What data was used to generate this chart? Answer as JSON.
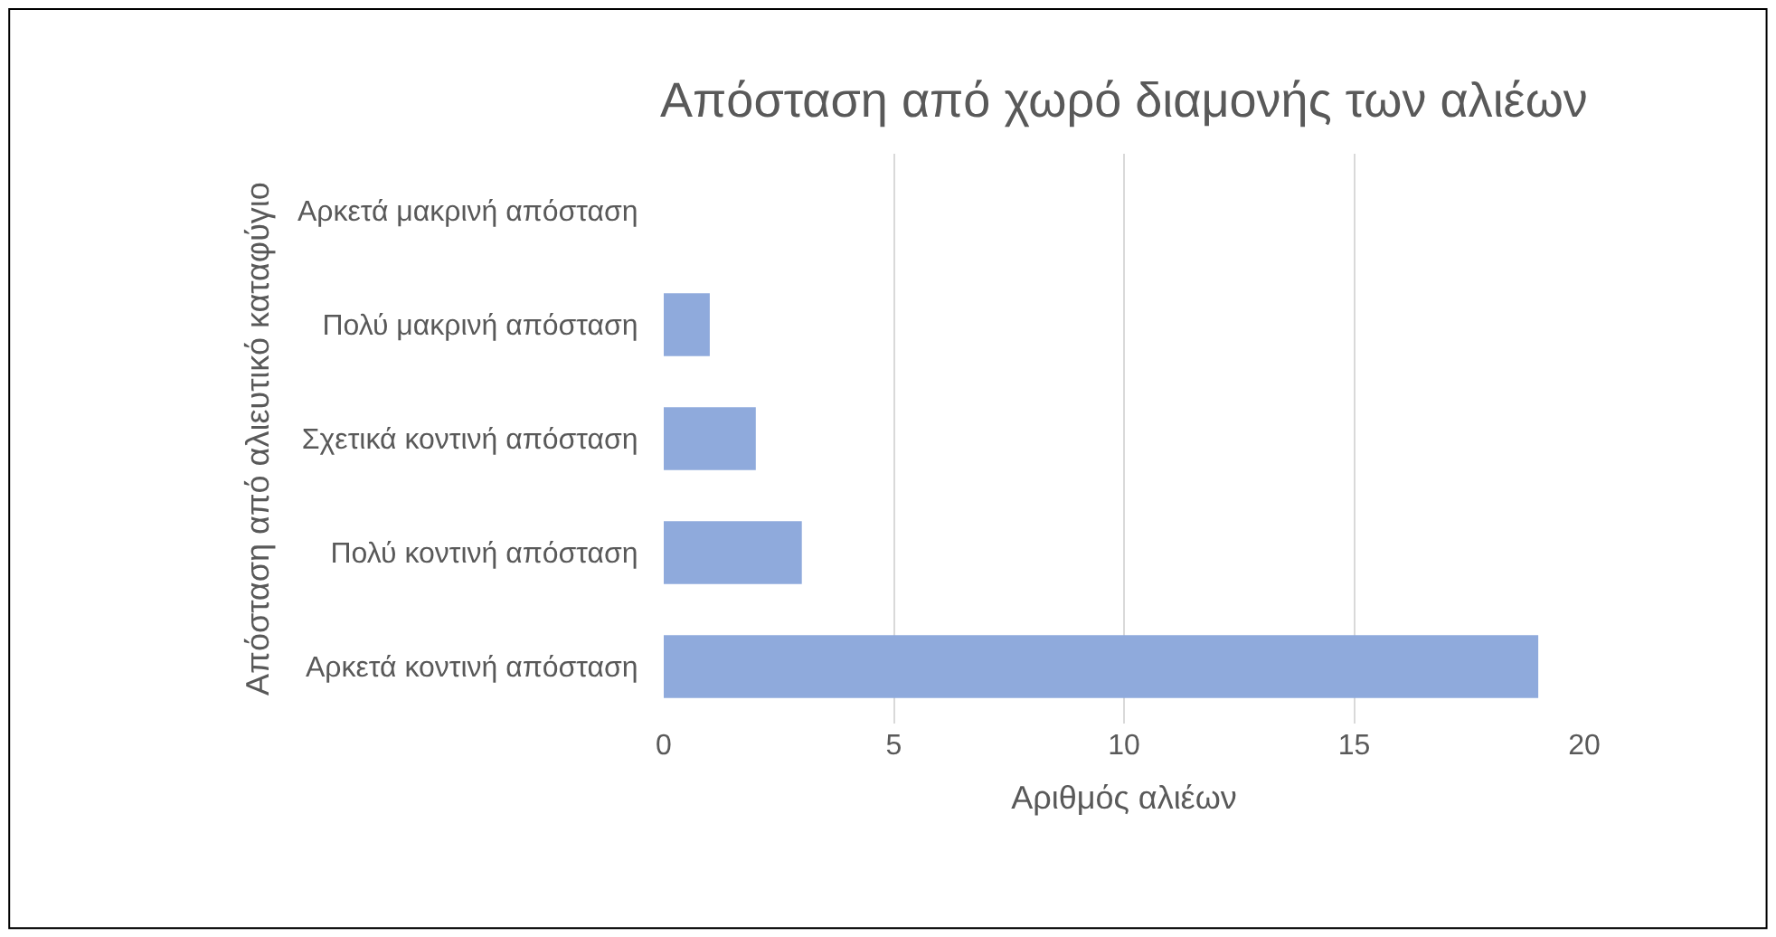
{
  "chart_data": {
    "type": "bar",
    "orientation": "horizontal",
    "title": "Απόσταση από χωρό διαμονής των αλιέων",
    "xlabel": "Αριθμός αλιέων",
    "ylabel": "Απόσταση από αλιευτικό καταφύγιο",
    "categories": [
      "Αρκετά μακρινή απόσταση",
      "Πολύ μακρινή απόσταση",
      "Σχετικά κοντινή απόσταση",
      "Πολύ κοντινή απόσταση",
      "Αρκετά κοντινή απόσταση"
    ],
    "values": [
      0,
      1,
      2,
      3,
      19
    ],
    "color": "#8faadc",
    "xlim": [
      0,
      20
    ],
    "xticks": [
      0,
      5,
      10,
      15,
      20
    ],
    "grid": "x"
  }
}
